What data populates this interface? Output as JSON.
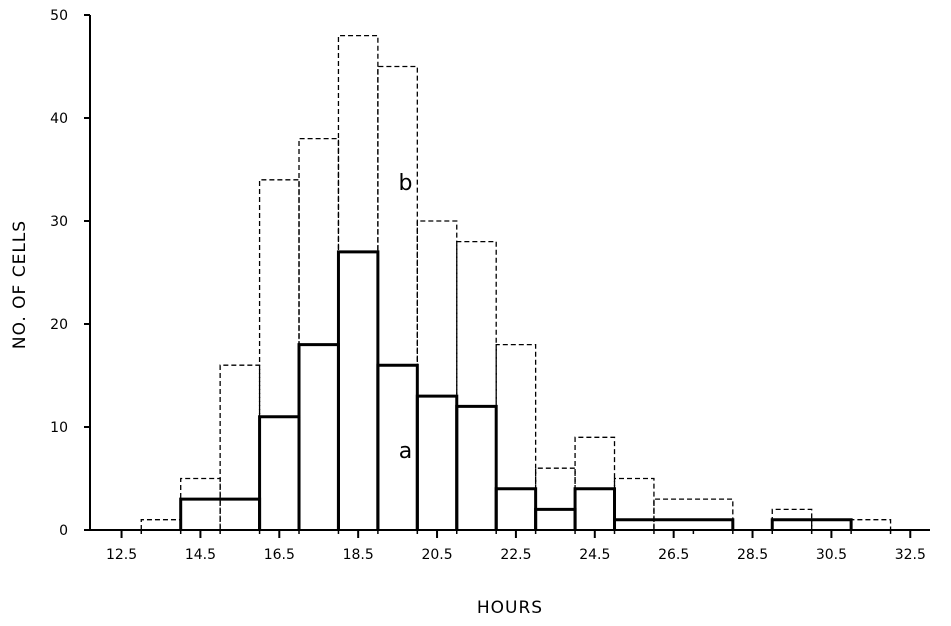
{
  "chart_data": {
    "type": "step-histogram",
    "title": "",
    "xlabel": "HOURS",
    "ylabel": "NO. OF CELLS",
    "x_tick_labels": [
      "12.5",
      "14.5",
      "16.5",
      "18.5",
      "20.5",
      "22.5",
      "24.5",
      "26.5",
      "28.5",
      "30.5",
      "32.5"
    ],
    "y_tick_labels": [
      "0",
      "10",
      "20",
      "30",
      "40",
      "50"
    ],
    "xlim": [
      11.7,
      33.0
    ],
    "ylim": [
      0,
      50
    ],
    "grid": false,
    "bin_width": 1,
    "series": [
      {
        "name": "a",
        "style": "solid",
        "bins": [
          {
            "x0": 14,
            "x1": 16,
            "y": 3
          },
          {
            "x0": 16,
            "x1": 17,
            "y": 11
          },
          {
            "x0": 17,
            "x1": 18,
            "y": 18
          },
          {
            "x0": 18,
            "x1": 19,
            "y": 27
          },
          {
            "x0": 19,
            "x1": 20,
            "y": 16
          },
          {
            "x0": 20,
            "x1": 21,
            "y": 13
          },
          {
            "x0": 21,
            "x1": 22,
            "y": 12
          },
          {
            "x0": 22,
            "x1": 23,
            "y": 4
          },
          {
            "x0": 23,
            "x1": 24,
            "y": 2
          },
          {
            "x0": 24,
            "x1": 25,
            "y": 4
          },
          {
            "x0": 25,
            "x1": 28,
            "y": 1
          },
          {
            "x0": 29,
            "x1": 31,
            "y": 1
          }
        ]
      },
      {
        "name": "b",
        "style": "dashed",
        "bins": [
          {
            "x0": 13,
            "x1": 14,
            "y": 1
          },
          {
            "x0": 14,
            "x1": 15,
            "y": 5
          },
          {
            "x0": 15,
            "x1": 16,
            "y": 16
          },
          {
            "x0": 16,
            "x1": 17,
            "y": 34
          },
          {
            "x0": 17,
            "x1": 18,
            "y": 38
          },
          {
            "x0": 18,
            "x1": 19,
            "y": 48
          },
          {
            "x0": 19,
            "x1": 20,
            "y": 45
          },
          {
            "x0": 20,
            "x1": 21,
            "y": 30
          },
          {
            "x0": 21,
            "x1": 22,
            "y": 28
          },
          {
            "x0": 22,
            "x1": 23,
            "y": 18
          },
          {
            "x0": 23,
            "x1": 24,
            "y": 6
          },
          {
            "x0": 24,
            "x1": 25,
            "y": 9
          },
          {
            "x0": 25,
            "x1": 26,
            "y": 5
          },
          {
            "x0": 26,
            "x1": 28,
            "y": 3
          },
          {
            "x0": 29,
            "x1": 30,
            "y": 2
          },
          {
            "x0": 30,
            "x1": 32,
            "y": 1
          }
        ]
      }
    ],
    "annotations": [
      {
        "text": "b",
        "x": 19.7,
        "y": 33
      },
      {
        "text": "a",
        "x": 19.7,
        "y": 7
      }
    ],
    "colors": {
      "line": "#000000",
      "background": "#ffffff"
    }
  }
}
